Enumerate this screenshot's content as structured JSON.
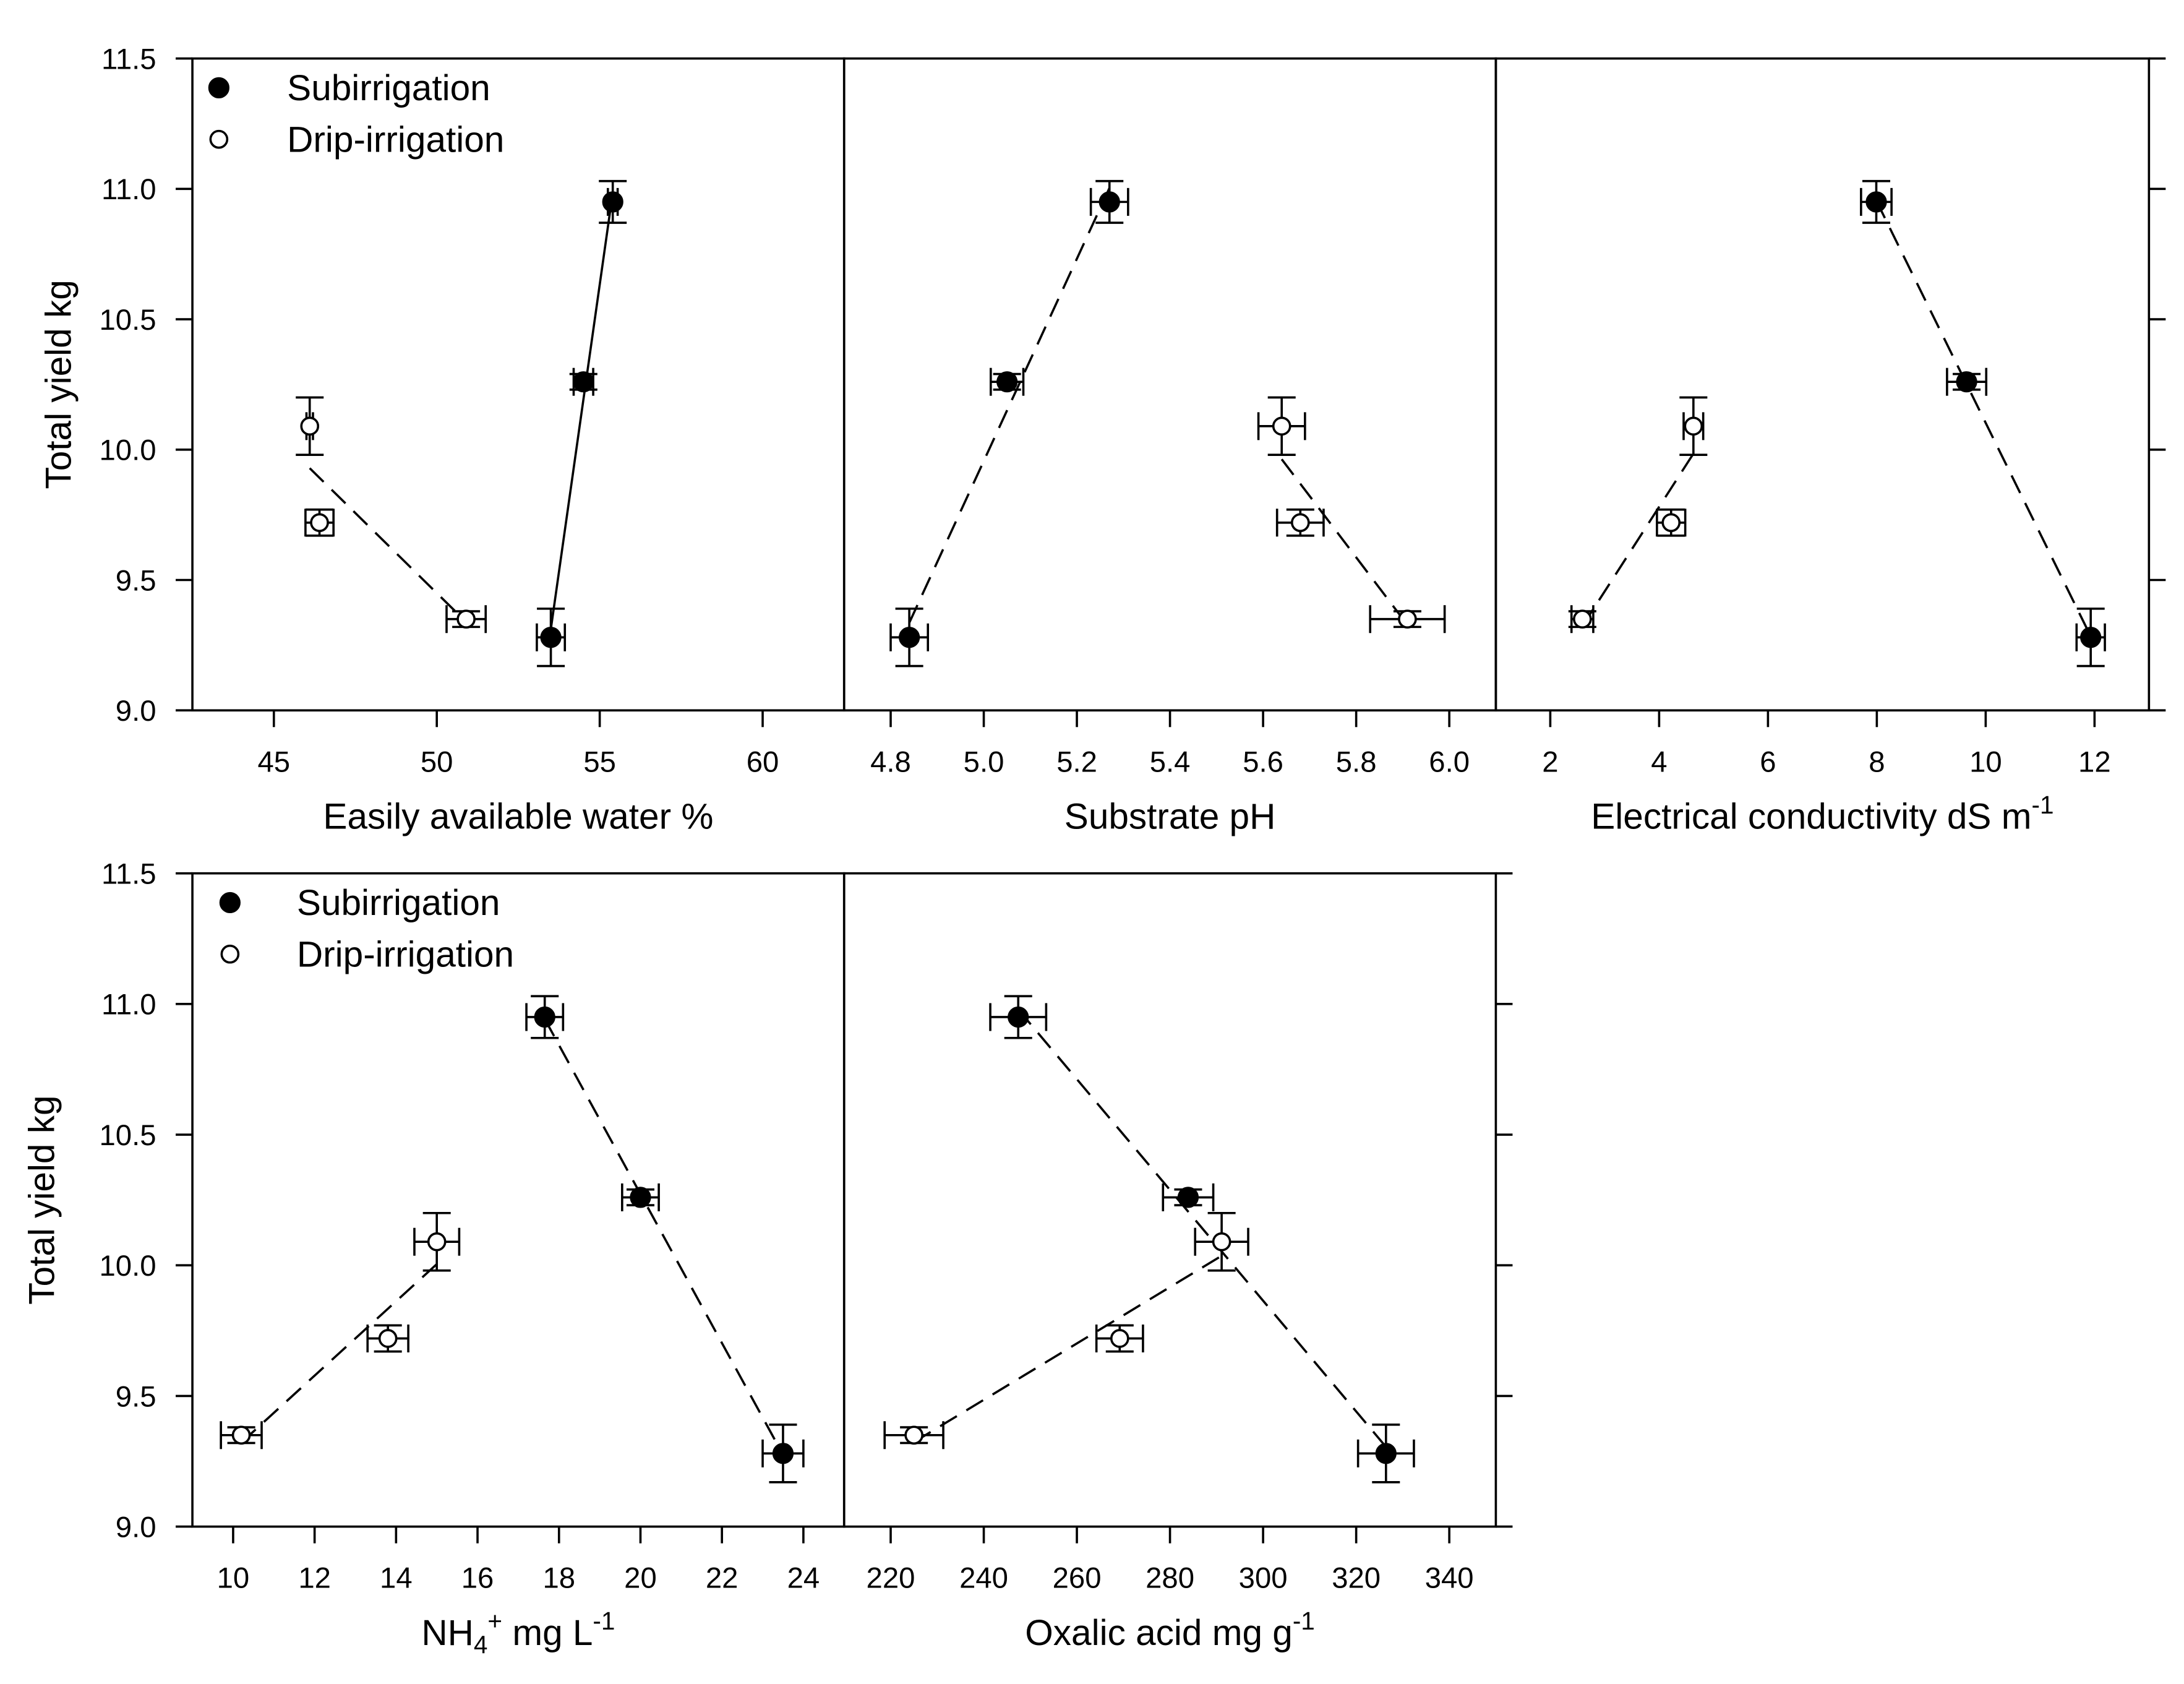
{
  "colors": {
    "ink": "#000000",
    "open_marker_fill": "#ffffff",
    "background": "#ffffff"
  },
  "chart_data": [
    {
      "type": "scatter",
      "xlabel": [
        {
          "text": "Easily available water %"
        }
      ],
      "ylabel": "Total yield kg",
      "xlim": [
        42.5,
        62.5
      ],
      "ylim": [
        9.0,
        11.5
      ],
      "xticks": [
        "45",
        "50",
        "55",
        "60"
      ],
      "yticks": [
        "9.0",
        "9.5",
        "10.0",
        "10.5",
        "11.0",
        "11.5"
      ],
      "grid": false,
      "legend": "top-left",
      "series": [
        {
          "name": "Subirrigation",
          "marker": "filled",
          "fit_line": "solid",
          "points": [
            {
              "x": 53.5,
              "y": 9.28,
              "xerr": 0.43,
              "yerr": 0.11
            },
            {
              "x": 54.5,
              "y": 10.26,
              "xerr": 0.3,
              "yerr": 0.03
            },
            {
              "x": 55.4,
              "y": 10.95,
              "xerr": 0.15,
              "yerr": 0.08
            }
          ]
        },
        {
          "name": "Drip-irrigation",
          "marker": "open",
          "fit_line": "dashed",
          "points": [
            {
              "x": 46.1,
              "y": 10.09,
              "xerr": 0.1,
              "yerr": 0.11
            },
            {
              "x": 46.4,
              "y": 9.72,
              "xerr": 0.43,
              "yerr": 0.05
            },
            {
              "x": 50.9,
              "y": 9.35,
              "xerr": 0.6,
              "yerr": 0.03
            }
          ]
        }
      ]
    },
    {
      "type": "scatter",
      "xlabel": [
        {
          "text": "Substrate pH"
        }
      ],
      "xlim": [
        4.7,
        6.1
      ],
      "ylim": [
        9.0,
        11.5
      ],
      "xticks": [
        "4.8",
        "5.0",
        "5.2",
        "5.4",
        "5.6",
        "5.8",
        "6.0"
      ],
      "grid": false,
      "series": [
        {
          "marker": "filled",
          "fit_line": "dashed",
          "points": [
            {
              "x": 4.84,
              "y": 9.28,
              "xerr": 0.04,
              "yerr": 0.11
            },
            {
              "x": 5.05,
              "y": 10.26,
              "xerr": 0.035,
              "yerr": 0.03
            },
            {
              "x": 5.27,
              "y": 10.95,
              "xerr": 0.04,
              "yerr": 0.08
            }
          ]
        },
        {
          "marker": "open",
          "fit_line": "dashed",
          "points": [
            {
              "x": 5.64,
              "y": 10.09,
              "xerr": 0.05,
              "yerr": 0.11
            },
            {
              "x": 5.68,
              "y": 9.72,
              "xerr": 0.05,
              "yerr": 0.05
            },
            {
              "x": 5.91,
              "y": 9.35,
              "xerr": 0.08,
              "yerr": 0.03
            }
          ]
        }
      ]
    },
    {
      "type": "scatter",
      "xlabel": [
        {
          "text": "Electrical conductivity dS m"
        },
        {
          "text": "-1",
          "script": "sup"
        }
      ],
      "xlim": [
        1,
        13
      ],
      "ylim": [
        9.0,
        11.5
      ],
      "xticks": [
        "2",
        "4",
        "6",
        "8",
        "10",
        "12"
      ],
      "grid": false,
      "series": [
        {
          "marker": "filled",
          "fit_line": "dashed",
          "points": [
            {
              "x": 7.99,
              "y": 10.95,
              "xerr": 0.28,
              "yerr": 0.08
            },
            {
              "x": 9.65,
              "y": 10.26,
              "xerr": 0.36,
              "yerr": 0.03
            },
            {
              "x": 11.93,
              "y": 9.28,
              "xerr": 0.26,
              "yerr": 0.11
            }
          ]
        },
        {
          "marker": "open",
          "fit_line": "dashed",
          "points": [
            {
              "x": 2.59,
              "y": 9.35,
              "xerr": 0.2,
              "yerr": 0.03
            },
            {
              "x": 4.22,
              "y": 9.72,
              "xerr": 0.26,
              "yerr": 0.05
            },
            {
              "x": 4.63,
              "y": 10.09,
              "xerr": 0.18,
              "yerr": 0.11
            }
          ]
        }
      ]
    },
    {
      "type": "scatter",
      "xlabel": [
        {
          "text": "NH"
        },
        {
          "text": "4",
          "script": "sub"
        },
        {
          "text": "+",
          "script": "sup"
        },
        {
          "text": " mg L"
        },
        {
          "text": "-1",
          "script": "sup"
        }
      ],
      "ylabel": "Total yield kg",
      "xlim": [
        9,
        25
      ],
      "ylim": [
        9.0,
        11.5
      ],
      "xticks": [
        "10",
        "12",
        "14",
        "16",
        "18",
        "20",
        "22",
        "24"
      ],
      "yticks": [
        "9.0",
        "9.5",
        "10.0",
        "10.5",
        "11.0",
        "11.5"
      ],
      "grid": false,
      "legend": "top-left",
      "series": [
        {
          "name": "Subirrigation",
          "marker": "filled",
          "fit_line": "dashed",
          "points": [
            {
              "x": 17.65,
              "y": 10.95,
              "xerr": 0.45,
              "yerr": 0.08
            },
            {
              "x": 20.0,
              "y": 10.26,
              "xerr": 0.45,
              "yerr": 0.03
            },
            {
              "x": 23.5,
              "y": 9.28,
              "xerr": 0.5,
              "yerr": 0.11
            }
          ]
        },
        {
          "name": "Drip-irrigation",
          "marker": "open",
          "fit_line": "dashed",
          "points": [
            {
              "x": 10.2,
              "y": 9.35,
              "xerr": 0.5,
              "yerr": 0.03
            },
            {
              "x": 13.8,
              "y": 9.72,
              "xerr": 0.5,
              "yerr": 0.05
            },
            {
              "x": 15.0,
              "y": 10.09,
              "xerr": 0.55,
              "yerr": 0.11
            }
          ]
        }
      ]
    },
    {
      "type": "scatter",
      "xlabel": [
        {
          "text": "Oxalic acid mg g"
        },
        {
          "text": "-1",
          "script": "sup"
        }
      ],
      "xlim": [
        210,
        350
      ],
      "ylim": [
        9.0,
        11.5
      ],
      "xticks": [
        "220",
        "240",
        "260",
        "280",
        "300",
        "320",
        "340"
      ],
      "grid": false,
      "series": [
        {
          "marker": "filled",
          "fit_line": "dashed",
          "points": [
            {
              "x": 247.4,
              "y": 10.95,
              "xerr": 6,
              "yerr": 0.08
            },
            {
              "x": 283.9,
              "y": 10.26,
              "xerr": 5.4,
              "yerr": 0.03
            },
            {
              "x": 326.4,
              "y": 9.28,
              "xerr": 6,
              "yerr": 0.11
            }
          ]
        },
        {
          "marker": "open",
          "fit_line": "dashed",
          "points": [
            {
              "x": 225.0,
              "y": 9.35,
              "xerr": 6.3,
              "yerr": 0.03
            },
            {
              "x": 269.2,
              "y": 9.72,
              "xerr": 5,
              "yerr": 0.05
            },
            {
              "x": 291.1,
              "y": 10.09,
              "xerr": 5.7,
              "yerr": 0.11
            }
          ]
        }
      ]
    }
  ]
}
